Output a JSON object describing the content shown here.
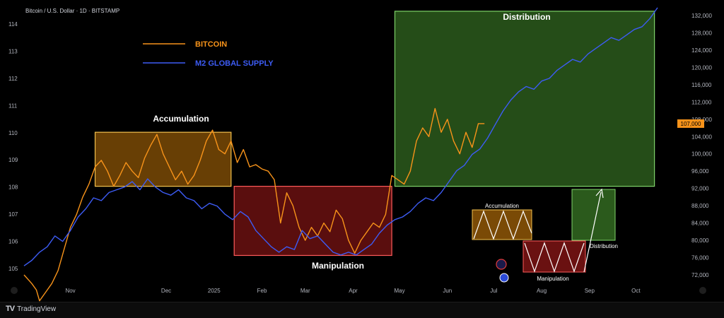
{
  "header": {
    "symbol_line": "Bitcoin / U.S. Dollar · 1D · BITSTAMP"
  },
  "footer": {
    "brand": "TradingView",
    "brand_icon": "tradingview-logo-icon"
  },
  "chart_data": {
    "type": "line",
    "title": "",
    "xlabel": "",
    "ylabel": "",
    "left_axis": {
      "ticks": [
        105,
        106,
        107,
        108,
        109,
        110,
        111,
        112,
        113,
        114
      ],
      "range": [
        104.5,
        114.5
      ]
    },
    "right_axis": {
      "ticks": [
        "132,000",
        "128,000",
        "124,000",
        "120,000",
        "116,000",
        "112,000",
        "108,000",
        "104,000",
        "100,000",
        "96,000",
        "92,000",
        "88,000",
        "84,000",
        "80,000",
        "76,000",
        "72,000"
      ],
      "range": [
        68000,
        133000
      ],
      "last_price_label": "107,000",
      "last_price_value": 107000
    },
    "x_axis": {
      "labels": [
        "Nov",
        "Dec",
        "2025",
        "Feb",
        "Mar",
        "Apr",
        "May",
        "Jun",
        "Jul",
        "Aug",
        "Sep",
        "Oct"
      ],
      "label_days": [
        30,
        92,
        123,
        154,
        182,
        213,
        243,
        274,
        304,
        335,
        366,
        396
      ]
    },
    "legend": [
      {
        "name": "BITCOIN",
        "color": "#f7931a"
      },
      {
        "name": "M2 GLOBAL SUPPLY",
        "color": "#3d5cf5"
      }
    ],
    "series": [
      {
        "name": "BITCOIN",
        "color": "#f7931a",
        "axis": "right",
        "x": [
          0,
          5,
          8,
          10,
          14,
          18,
          22,
          26,
          30,
          34,
          38,
          42,
          46,
          50,
          54,
          58,
          62,
          66,
          70,
          74,
          78,
          82,
          86,
          90,
          94,
          98,
          102,
          106,
          110,
          114,
          118,
          122,
          126,
          130,
          134,
          138,
          142,
          146,
          150,
          154,
          158,
          162,
          166,
          170,
          174,
          178,
          182,
          186,
          190,
          194,
          198,
          202,
          206,
          210,
          214,
          218,
          222,
          226,
          230,
          234,
          238,
          242,
          246,
          250,
          254,
          258,
          262,
          266,
          270,
          274,
          278,
          282,
          286,
          290,
          294,
          298
        ],
        "y": [
          72000,
          70000,
          68500,
          66000,
          68000,
          70000,
          73000,
          78000,
          83000,
          86000,
          90000,
          93000,
          97000,
          98500,
          96000,
          92500,
          95000,
          98000,
          96000,
          94500,
          99000,
          102000,
          104500,
          100000,
          97000,
          94000,
          96000,
          93000,
          95000,
          98500,
          103000,
          105500,
          101000,
          100000,
          103000,
          98000,
          101000,
          97000,
          97500,
          96500,
          96000,
          94000,
          84000,
          91000,
          88000,
          83000,
          80000,
          83000,
          81000,
          84000,
          82000,
          87000,
          85000,
          80000,
          77000,
          80000,
          82000,
          84000,
          83000,
          86000,
          95000,
          94000,
          93000,
          96000,
          103000,
          106000,
          104000,
          110500,
          105000,
          108000,
          103000,
          100000,
          105000,
          101500,
          107000,
          107000
        ]
      },
      {
        "name": "M2 GLOBAL SUPPLY",
        "color": "#3d5cf5",
        "axis": "left",
        "x": [
          0,
          5,
          10,
          15,
          20,
          25,
          30,
          35,
          40,
          45,
          50,
          55,
          60,
          65,
          70,
          75,
          80,
          85,
          90,
          95,
          100,
          105,
          110,
          115,
          120,
          125,
          130,
          135,
          140,
          145,
          150,
          155,
          160,
          165,
          170,
          175,
          180,
          185,
          190,
          195,
          200,
          205,
          210,
          215,
          220,
          225,
          230,
          235,
          240,
          245,
          250,
          255,
          260,
          265,
          270,
          275,
          280,
          285,
          290,
          295,
          300,
          305,
          310,
          315,
          320,
          325,
          330,
          335,
          340,
          345,
          350,
          355,
          360,
          365,
          370,
          375,
          380,
          385,
          390,
          395,
          400,
          405,
          410
        ],
        "y": [
          105.1,
          105.3,
          105.6,
          105.8,
          106.2,
          106.0,
          106.4,
          106.9,
          107.2,
          107.6,
          107.5,
          107.8,
          107.9,
          108.0,
          108.2,
          107.9,
          108.3,
          108.0,
          107.8,
          107.7,
          107.9,
          107.6,
          107.5,
          107.2,
          107.4,
          107.3,
          107.0,
          106.8,
          107.1,
          106.9,
          106.4,
          106.1,
          105.8,
          105.6,
          105.8,
          105.7,
          106.4,
          106.1,
          106.2,
          105.9,
          105.6,
          105.5,
          105.6,
          105.5,
          105.7,
          105.9,
          106.3,
          106.6,
          106.8,
          106.9,
          107.1,
          107.4,
          107.6,
          107.5,
          107.8,
          108.2,
          108.6,
          108.8,
          109.2,
          109.4,
          109.8,
          110.3,
          110.8,
          111.2,
          111.5,
          111.7,
          111.6,
          111.9,
          112.0,
          112.3,
          112.5,
          112.7,
          112.6,
          112.9,
          113.1,
          113.3,
          113.5,
          113.4,
          113.6,
          113.8,
          113.9,
          114.2,
          114.6
        ]
      }
    ],
    "annotations": [
      {
        "label": "Accumulation",
        "color": "#f7931a",
        "x_range": [
          0,
          1
        ],
        "fill": "#7a4a06",
        "stroke": "#f2c14e"
      },
      {
        "label": "Manipulation",
        "color": "#e03a3a",
        "fill": "#6a1111",
        "stroke": "#ff5b5b"
      },
      {
        "label": "Distribution",
        "color": "#3b8a2a",
        "fill": "#2b5a1c",
        "stroke": "#7fd36a"
      }
    ],
    "inset_labels": {
      "accumulation": "Accumulation",
      "manipulation": "Manipulation",
      "distribution": "Distribution"
    },
    "grid": false
  }
}
